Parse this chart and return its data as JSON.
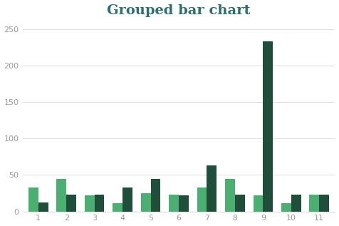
{
  "title": "Grouped bar chart",
  "categories": [
    1,
    2,
    3,
    4,
    5,
    6,
    7,
    8,
    9,
    10,
    11
  ],
  "series1": [
    33,
    45,
    22,
    11,
    25,
    23,
    33,
    45,
    22,
    11,
    23
  ],
  "series2": [
    12,
    23,
    23,
    33,
    45,
    22,
    63,
    23,
    233,
    23,
    23
  ],
  "color1": "#4caf72",
  "color2": "#1f4e3a",
  "background_color": "#ffffff",
  "title_color": "#2e6e6e",
  "ylim": [
    0,
    260
  ],
  "yticks": [
    0,
    50,
    100,
    150,
    200,
    250
  ],
  "bar_width": 0.35,
  "title_fontsize": 14,
  "title_fontweight": "bold"
}
